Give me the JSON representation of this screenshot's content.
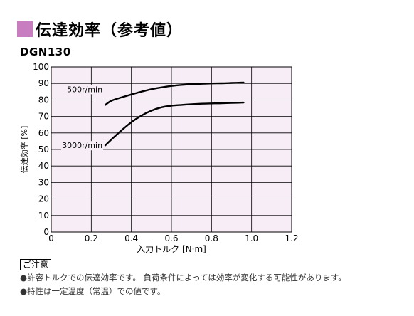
{
  "header": {
    "title": "伝達効率（参考値）",
    "accent_color": "#c77dbf"
  },
  "model": "DGN130",
  "chart_data": {
    "type": "line",
    "xlabel": "入力トルク [N·m]",
    "ylabel": "伝達効率 [%]",
    "xlim": [
      0,
      1.2
    ],
    "ylim": [
      0,
      100
    ],
    "xticks": [
      "0",
      "0.2",
      "0.4",
      "0.6",
      "0.8",
      "1.0",
      "1.2"
    ],
    "yticks": [
      "0",
      "10",
      "20",
      "30",
      "40",
      "50",
      "60",
      "70",
      "80",
      "90",
      "100"
    ],
    "grid": true,
    "background": "#f7edf6",
    "series": [
      {
        "name": "500r/min",
        "x": [
          0.27,
          0.3,
          0.35,
          0.4,
          0.45,
          0.5,
          0.55,
          0.6,
          0.65,
          0.7,
          0.75,
          0.8,
          0.85,
          0.9,
          0.96
        ],
        "y": [
          77,
          79.5,
          81.5,
          83.3,
          85,
          86.5,
          87.6,
          88.5,
          89.1,
          89.5,
          89.8,
          90,
          90.1,
          90.3,
          90.5
        ]
      },
      {
        "name": "3000r/min",
        "x": [
          0.27,
          0.3,
          0.35,
          0.4,
          0.45,
          0.5,
          0.55,
          0.6,
          0.65,
          0.7,
          0.75,
          0.8,
          0.85,
          0.9,
          0.96
        ],
        "y": [
          52.5,
          56,
          61.5,
          66.5,
          70.5,
          73.5,
          75.5,
          76.5,
          77,
          77.4,
          77.7,
          77.9,
          78,
          78.2,
          78.4
        ]
      }
    ]
  },
  "notes": {
    "heading": "ご注意",
    "items": [
      "●許容トルクでの伝達効率です。 負荷条件によっては効率が変化する可能性があります。",
      "●特性は一定温度（常温）での値です。"
    ]
  }
}
